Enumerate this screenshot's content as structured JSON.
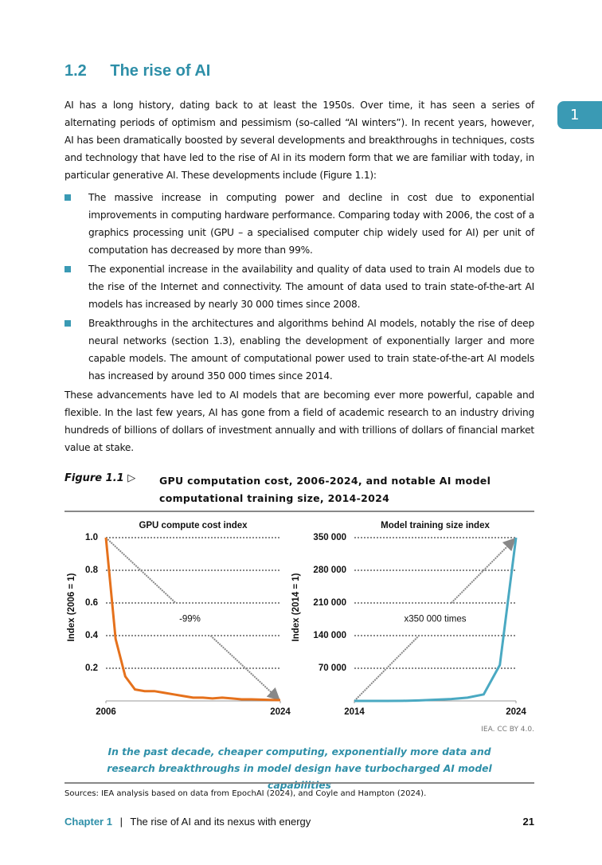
{
  "header": {
    "number": "1.2",
    "title": "The rise of AI"
  },
  "side_tab": "1",
  "paragraphs": [
    "AI has a long history, dating back to at least the 1950s. Over time, it has seen a series of alternating periods of optimism and pessimism (so-called “AI winters”). In recent years, however, AI has been dramatically boosted by several developments and breakthroughs in techniques, costs and technology that have led to the rise of AI in its modern form that we are familiar with today, in particular generative AI. These developments include (Figure 1.1):",
    "These advancements have led to AI models that are becoming ever more powerful, capable and flexible. In the last few years, AI has gone from a field of academic research to an industry driving hundreds of billions of dollars of investment annually and with trillions of dollars of financial market value at stake."
  ],
  "bullets": [
    "The massive increase in computing power and decline in cost due to exponential improvements in computing hardware performance. Comparing today with 2006, the cost of a graphics processing unit (GPU – a specialised computer chip widely used for AI) per unit of computation has decreased by more than 99%.",
    "The exponential increase in the availability and quality of data used to train AI models due to the rise of the Internet and connectivity. The amount of data used to train state-of-the-art AI models has increased by nearly 30 000 times since 2008.",
    "Breakthroughs in the architectures and algorithms behind AI models, notably the rise of deep neural networks (section 1.3), enabling the development of exponentially larger and more capable models. The amount of computational power used to train state-of-the-art AI models has increased by around 350 000 times since 2014."
  ],
  "figure": {
    "label": "Figure 1.1 ▷",
    "title": "GPU computation cost, 2006-2024, and notable AI model computational training size, 2014-2024",
    "credit": "IEA. CC BY 4.0.",
    "caption": "In the past decade, cheaper computing, exponentially more data and research breakthroughs in model design have turbocharged AI model capabilities",
    "sources": "Sources: IEA analysis based on data from EpochAI (2024), and Coyle and Hampton (2024)."
  },
  "footer": {
    "chapter": "Chapter 1",
    "separator": "|",
    "text": "The rise of AI and its nexus with energy",
    "page": "21"
  },
  "chart_data": [
    {
      "type": "line",
      "title": "GPU compute cost index",
      "y_label": "Index (2006 = 1)",
      "annotation": "-99%",
      "x": [
        2006,
        2007,
        2008,
        2009,
        2010,
        2011,
        2012,
        2013,
        2014,
        2015,
        2016,
        2017,
        2018,
        2019,
        2020,
        2021,
        2022,
        2023,
        2024
      ],
      "series": [
        {
          "name": "GPU compute cost index",
          "color": "#e5711c",
          "values": [
            1.0,
            0.38,
            0.15,
            0.07,
            0.06,
            0.06,
            0.05,
            0.04,
            0.03,
            0.02,
            0.02,
            0.015,
            0.02,
            0.015,
            0.01,
            0.01,
            0.008,
            0.006,
            0.005
          ]
        }
      ],
      "xlim": [
        2006,
        2024
      ],
      "xticks": [
        2006,
        2024
      ],
      "ylim": [
        0,
        1
      ],
      "yticks": [
        0.2,
        0.4,
        0.6,
        0.8,
        {
          "value": 1,
          "label": "1.0"
        }
      ],
      "grid": true
    },
    {
      "type": "line",
      "title": "Model training size index",
      "y_label": "Index (2014 = 1)",
      "annotation": "x350 000 times",
      "x": [
        2014,
        2015,
        2016,
        2017,
        2018,
        2019,
        2020,
        2021,
        2022,
        2023,
        2024
      ],
      "series": [
        {
          "name": "Model training size index",
          "color": "#4aa9c2",
          "values": [
            1,
            5,
            30,
            200,
            1000,
            2500,
            4000,
            7000,
            14000,
            77000,
            350000
          ]
        }
      ],
      "xlim": [
        2014,
        2024
      ],
      "xticks": [
        2014,
        2024
      ],
      "ylim": [
        0,
        350000
      ],
      "yticks": [
        {
          "value": 70000,
          "label": "70 000"
        },
        {
          "value": 140000,
          "label": "140 000"
        },
        {
          "value": 210000,
          "label": "210 000"
        },
        {
          "value": 280000,
          "label": "280 000"
        },
        {
          "value": 350000,
          "label": "350 000"
        }
      ],
      "grid": true
    }
  ]
}
